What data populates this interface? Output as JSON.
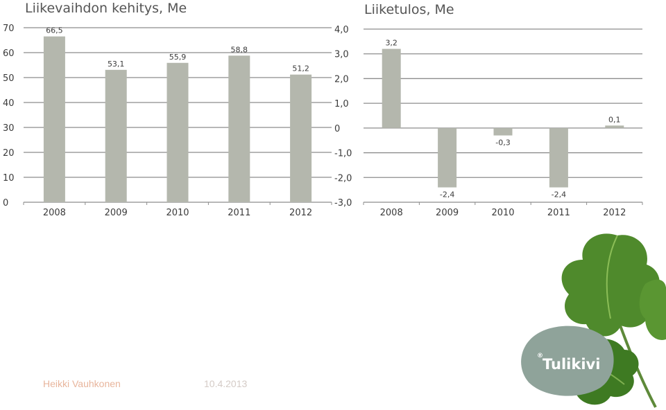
{
  "chart_data": [
    {
      "type": "bar",
      "title": "Liikevaihdon kehitys, Me",
      "categories": [
        "2008",
        "2009",
        "2010",
        "2011",
        "2012"
      ],
      "values": [
        66.5,
        53.1,
        55.9,
        58.8,
        51.2
      ],
      "value_labels": [
        "66,5",
        "53,1",
        "55,9",
        "58,8",
        "51,2"
      ],
      "ylim": [
        0,
        70
      ],
      "yticks": [
        0,
        10,
        20,
        30,
        40,
        50,
        60,
        70
      ],
      "ytick_labels": [
        "0",
        "10",
        "20",
        "30",
        "40",
        "50",
        "60",
        "70"
      ],
      "grid": true,
      "bar_color": "#b4b7ad"
    },
    {
      "type": "bar",
      "title": "Liiketulos, Me",
      "categories": [
        "2008",
        "2009",
        "2010",
        "2011",
        "2012"
      ],
      "values": [
        3.2,
        -2.4,
        -0.3,
        -2.4,
        0.1
      ],
      "value_labels": [
        "3,2",
        "-2,4",
        "-0,3",
        "-2,4",
        "0,1"
      ],
      "ylim": [
        -3.0,
        4.0
      ],
      "yticks": [
        -3.0,
        -2.0,
        -1.0,
        0,
        1.0,
        2.0,
        3.0,
        4.0
      ],
      "ytick_labels": [
        "-3,0",
        "-2,0",
        "-1,0",
        "0",
        "1,0",
        "2,0",
        "3,0",
        "4,0"
      ],
      "grid": true,
      "bar_color": "#b4b7ad"
    }
  ],
  "footer": {
    "author": "Heikki Vauhkonen",
    "date": "10.4.2013"
  },
  "brand": {
    "logo_text": "Tulikivi",
    "logo_mark": "®",
    "logo_color": "#8fa39a"
  },
  "colors": {
    "grid": "#8c8c8c",
    "text": "#3a3a3a",
    "footer_author": "#e8b59c"
  }
}
